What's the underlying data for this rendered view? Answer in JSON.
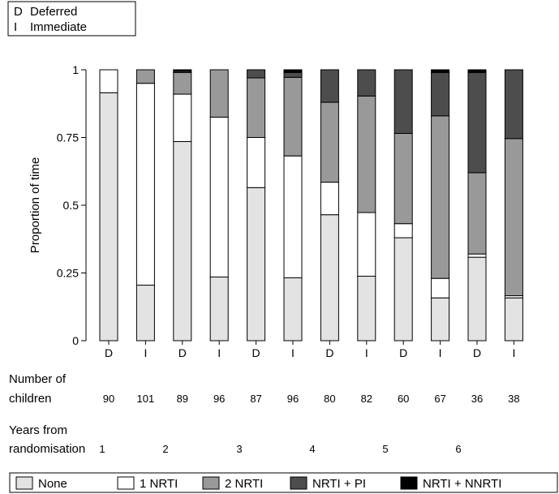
{
  "chart_data": {
    "type": "bar",
    "stacked": true,
    "ylabel": "Proportion of time",
    "ylim": [
      0,
      1
    ],
    "yticks": [
      0,
      0.25,
      0.5,
      0.75,
      1
    ],
    "ytick_labels": [
      "0",
      "0.25",
      "0.5",
      "0.75",
      "1"
    ],
    "categories": [
      "D",
      "I",
      "D",
      "I",
      "D",
      "I",
      "D",
      "I",
      "D",
      "I",
      "D",
      "I"
    ],
    "top_legend": [
      {
        "code": "D",
        "label": "Deferred"
      },
      {
        "code": "I",
        "label": "Immediate"
      }
    ],
    "number_of_children_label": [
      "Number of",
      "children"
    ],
    "number_of_children": [
      "90",
      "101",
      "89",
      "96",
      "87",
      "96",
      "80",
      "82",
      "60",
      "67",
      "36",
      "38"
    ],
    "years_label": [
      "Years from",
      "randomisation"
    ],
    "years": [
      "1",
      "2",
      "3",
      "4",
      "5",
      "6"
    ],
    "series": [
      {
        "name": "None",
        "color": "#e3e3e3",
        "values": [
          0.915,
          0.205,
          0.735,
          0.235,
          0.565,
          0.232,
          0.465,
          0.238,
          0.38,
          0.158,
          0.308,
          0.158
        ]
      },
      {
        "name": "1 NRTI",
        "color": "#ffffff",
        "values": [
          0.085,
          0.745,
          0.175,
          0.59,
          0.185,
          0.45,
          0.12,
          0.235,
          0.052,
          0.072,
          0.012,
          0.008
        ]
      },
      {
        "name": "2 NRTI",
        "color": "#999999",
        "values": [
          0.0,
          0.05,
          0.08,
          0.175,
          0.22,
          0.29,
          0.295,
          0.43,
          0.333,
          0.6,
          0.3,
          0.58
        ]
      },
      {
        "name": "NRTI + PI",
        "color": "#4d4d4d",
        "values": [
          0.0,
          0.0,
          0.005,
          0.0,
          0.03,
          0.018,
          0.12,
          0.097,
          0.235,
          0.16,
          0.37,
          0.254
        ]
      },
      {
        "name": "NRTI + NNRTI",
        "color": "#000000",
        "values": [
          0.0,
          0.0,
          0.005,
          0.0,
          0.0,
          0.01,
          0.0,
          0.0,
          0.0,
          0.01,
          0.01,
          0.0
        ]
      }
    ]
  }
}
